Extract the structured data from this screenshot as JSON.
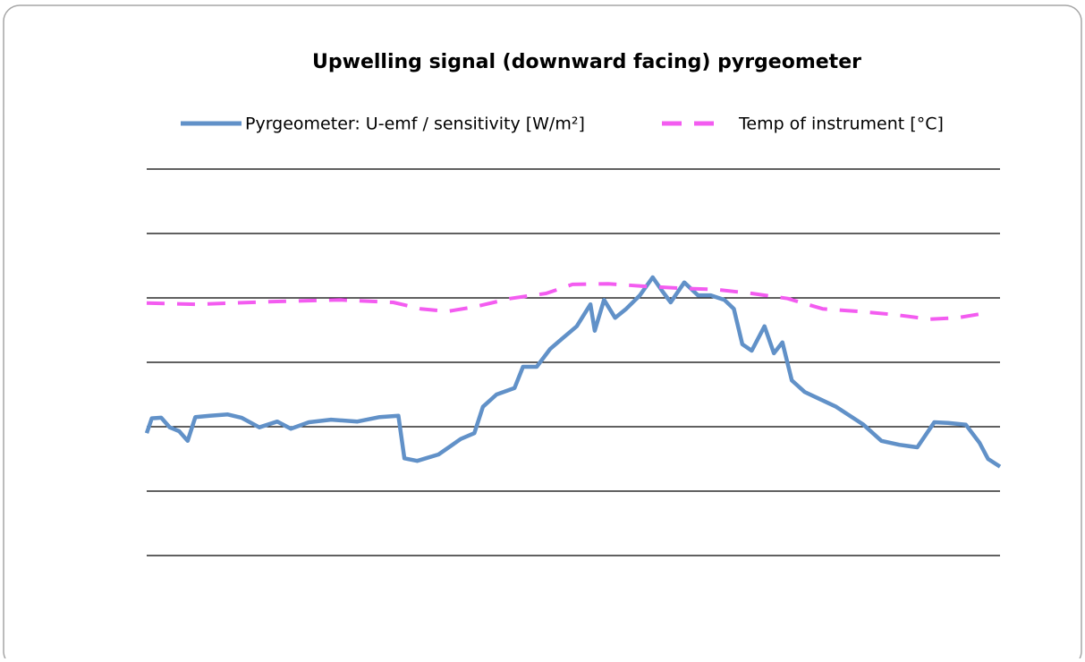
{
  "chart_data": {
    "type": "line",
    "title": "Upwelling signal (downward facing) pyrgeometer",
    "xlim": [
      0,
      100
    ],
    "ylim": [
      0,
      6
    ],
    "yticks": [
      0,
      1,
      2,
      3,
      4,
      5,
      6
    ],
    "grid": true,
    "series": [
      {
        "name": "Pyrgeometer: U-emf / sensitivity [W/m²]",
        "color": "#6191c8",
        "dash": false,
        "x": [
          0,
          0.6,
          1.7,
          2.7,
          3.8,
          4.8,
          5.7,
          7.4,
          9.5,
          11.1,
          13.2,
          15.3,
          16.9,
          19.0,
          21.6,
          24.7,
          27.3,
          29.5,
          30.2,
          31.7,
          34.2,
          36.8,
          38.4,
          39.4,
          41.0,
          43.1,
          44.1,
          45.7,
          47.3,
          48.8,
          50.4,
          52.0,
          52.5,
          53.6,
          54.9,
          56.2,
          57.8,
          59.3,
          60.4,
          61.4,
          63.0,
          64.6,
          66.1,
          67.7,
          68.8,
          69.8,
          70.9,
          72.4,
          73.5,
          74.5,
          75.6,
          77.1,
          78.7,
          80.8,
          82.4,
          84.0,
          86.1,
          88.2,
          90.3,
          92.3,
          93.9,
          96.0,
          97.6,
          98.6,
          100
        ],
        "values": [
          1.9,
          2.13,
          2.14,
          1.99,
          1.93,
          1.78,
          2.15,
          2.17,
          2.19,
          2.14,
          1.99,
          2.08,
          1.97,
          2.07,
          2.11,
          2.08,
          2.15,
          2.17,
          1.51,
          1.47,
          1.57,
          1.81,
          1.9,
          2.31,
          2.5,
          2.6,
          2.93,
          2.93,
          3.21,
          3.38,
          3.56,
          3.9,
          3.49,
          3.97,
          3.69,
          3.83,
          4.04,
          4.32,
          4.11,
          3.93,
          4.24,
          4.04,
          4.04,
          3.97,
          3.83,
          3.28,
          3.18,
          3.56,
          3.14,
          3.31,
          2.72,
          2.54,
          2.44,
          2.31,
          2.17,
          2.03,
          1.78,
          1.72,
          1.68,
          2.07,
          2.06,
          2.03,
          1.75,
          1.5,
          1.38
        ]
      },
      {
        "name": "Temp of instrument [°C]",
        "color": "#f35cf0",
        "dash": true,
        "x": [
          0,
          5.9,
          14.3,
          22.6,
          28.9,
          32.1,
          35.2,
          38.4,
          42.6,
          46.8,
          49.9,
          54.1,
          58.3,
          62.5,
          66.7,
          70.9,
          75.1,
          79.2,
          83.4,
          87.6,
          91.8,
          95.0,
          98.1
        ],
        "values": [
          3.92,
          3.9,
          3.94,
          3.97,
          3.93,
          3.83,
          3.79,
          3.86,
          3.99,
          4.07,
          4.21,
          4.22,
          4.18,
          4.15,
          4.13,
          4.07,
          3.99,
          3.83,
          3.79,
          3.74,
          3.67,
          3.69,
          3.76
        ]
      }
    ]
  }
}
